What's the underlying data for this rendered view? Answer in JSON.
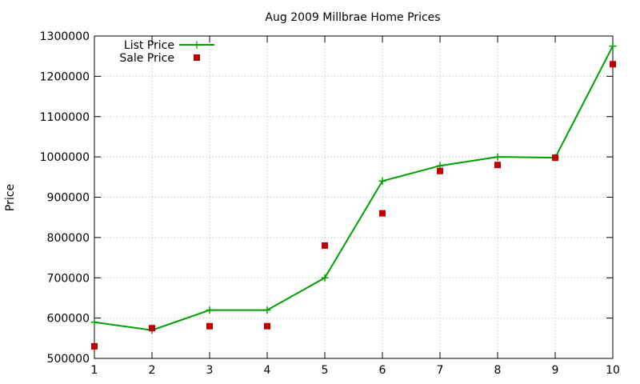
{
  "chart_data": {
    "type": "line",
    "title": "Aug 2009 Millbrae Home Prices",
    "xlabel": "",
    "ylabel": "Price",
    "x": [
      1,
      2,
      3,
      4,
      5,
      6,
      7,
      8,
      9,
      10
    ],
    "xlim": [
      1,
      10
    ],
    "ylim": [
      500000,
      1300000
    ],
    "xticks": [
      "1",
      "2",
      "3",
      "4",
      "5",
      "6",
      "7",
      "8",
      "9",
      "10"
    ],
    "yticks": [
      "500000",
      "600000",
      "700000",
      "800000",
      "900000",
      "1000000",
      "1100000",
      "1200000",
      "1300000"
    ],
    "grid": true,
    "legend_position": "top-left",
    "series": [
      {
        "name": "List Price",
        "style": "line-with-plus-markers",
        "color": "#00a000",
        "values": [
          590000,
          570000,
          620000,
          620000,
          700000,
          940000,
          978000,
          1000000,
          998000,
          1275000
        ]
      },
      {
        "name": "Sale Price",
        "style": "square-points",
        "color": "#c00000",
        "values": [
          530000,
          575000,
          580000,
          580000,
          780000,
          860000,
          965000,
          980000,
          998000,
          1230000
        ]
      }
    ]
  }
}
